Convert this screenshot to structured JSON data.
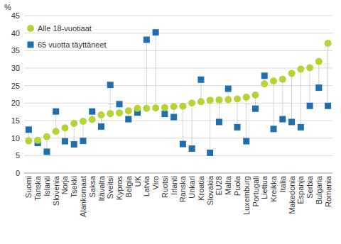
{
  "chart_data": {
    "type": "scatter",
    "y_label": "%",
    "categories": [
      "Suomi",
      "Tanska",
      "Islanti",
      "Slovenia",
      "Norja",
      "Tsekki",
      "Alankomaat",
      "Saksa",
      "Itävalta",
      "Sveitsi",
      "Kypros",
      "Belgia",
      "UK",
      "Latvia",
      "Viro",
      "Ruotsi",
      "Irlanti",
      "Ranska",
      "Unkari",
      "Kroatia",
      "Slovakia",
      "EU28",
      "Malta",
      "Puola",
      "Luxemburg",
      "Portugali",
      "Liettua",
      "Kreikka",
      "Italia",
      "Makedonia",
      "Espanja",
      "Serbia",
      "Bulgaria",
      "Romania"
    ],
    "series": [
      {
        "name": "Alle 18-vuotiaat",
        "color": "#b5d334",
        "marker": "circle",
        "values": [
          9.2,
          9.4,
          10.4,
          11.9,
          12.9,
          14.2,
          14.8,
          15.3,
          16.6,
          17.0,
          17.2,
          17.8,
          18.5,
          18.5,
          18.6,
          18.7,
          19.0,
          19.1,
          20.0,
          20.4,
          20.8,
          20.9,
          21.0,
          21.2,
          21.7,
          22.3,
          25.5,
          26.3,
          26.8,
          28.5,
          29.7,
          30.1,
          31.9,
          37.1
        ]
      },
      {
        "name": "65 vuotta täyttäneet",
        "color": "#1f6fb0",
        "marker": "square",
        "values": [
          12.4,
          8.6,
          6.1,
          17.6,
          9.1,
          8.2,
          9.2,
          17.6,
          13.3,
          25.2,
          19.7,
          15.4,
          17.3,
          38.1,
          40.2,
          16.9,
          16.0,
          8.3,
          7.0,
          26.7,
          5.8,
          14.6,
          24.1,
          13.1,
          9.1,
          18.4,
          27.8,
          12.6,
          15.4,
          14.6,
          13.1,
          19.2,
          24.4,
          19.2
        ]
      }
    ],
    "ylim": [
      0,
      45
    ],
    "yticks": [
      0,
      5,
      10,
      15,
      20,
      25,
      30,
      35,
      40,
      45
    ],
    "grid": true,
    "legend": "top-left"
  }
}
